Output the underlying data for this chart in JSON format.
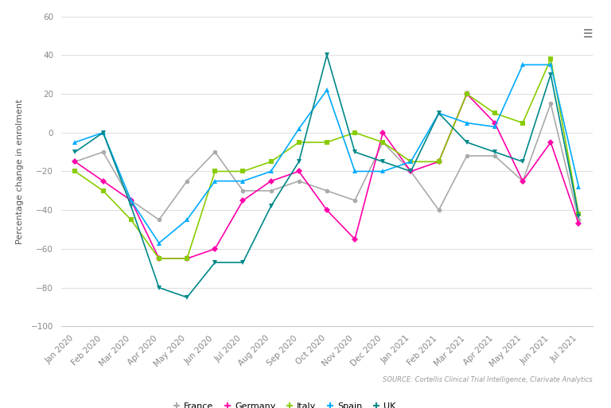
{
  "months": [
    "Jan 2020",
    "Feb 2020",
    "Mar 2020",
    "Apr 2020",
    "May 2020",
    "Jun 2020",
    "Jul 2020",
    "Aug 2020",
    "Sep 2020",
    "Oct 2020",
    "Nov 2020",
    "Dec 2020",
    "Jan 2021",
    "Feb 2021",
    "Mar 2021",
    "Apr 2021",
    "May 2021",
    "Jun 2021",
    "Jul 2021"
  ],
  "France": [
    -15,
    -10,
    -35,
    -45,
    -25,
    -10,
    -30,
    -30,
    -25,
    -30,
    -35,
    -5,
    -20,
    -40,
    -12,
    -12,
    -25,
    15,
    -45
  ],
  "Germany": [
    -15,
    -25,
    -35,
    -65,
    -65,
    -60,
    -35,
    -25,
    -20,
    -40,
    -55,
    0,
    -20,
    -15,
    20,
    5,
    -25,
    -5,
    -47
  ],
  "Italy": [
    -20,
    -30,
    -45,
    -65,
    -65,
    -20,
    -20,
    -15,
    -5,
    -5,
    0,
    -5,
    -15,
    -15,
    20,
    10,
    5,
    38,
    -42
  ],
  "Spain": [
    -5,
    0,
    -35,
    -57,
    -45,
    -25,
    -25,
    -20,
    2,
    22,
    -20,
    -20,
    -15,
    10,
    5,
    3,
    35,
    35,
    -28
  ],
  "UK": [
    -10,
    0,
    -38,
    -80,
    -85,
    -67,
    -67,
    -38,
    -15,
    40,
    -10,
    -15,
    -20,
    10,
    -5,
    -10,
    -15,
    30,
    -43
  ],
  "colors": {
    "France": "#aaaaaa",
    "Germany": "#ff00aa",
    "Italy": "#88cc00",
    "Spain": "#00aaff",
    "UK": "#008888"
  },
  "ylabel": "Percentage change in enrolment",
  "ylim": [
    -100,
    60
  ],
  "yticks": [
    -100,
    -80,
    -60,
    -40,
    -20,
    0,
    20,
    40,
    60
  ],
  "source": "SOURCE: Cortellis Clinical Trial Intelligence, Clarivate Analytics",
  "background_color": "#ffffff",
  "plot_bg_color": "#ffffff",
  "grid_color": "#dddddd",
  "axis_fontsize": 8,
  "legend_fontsize": 8,
  "tick_fontsize": 7.5
}
